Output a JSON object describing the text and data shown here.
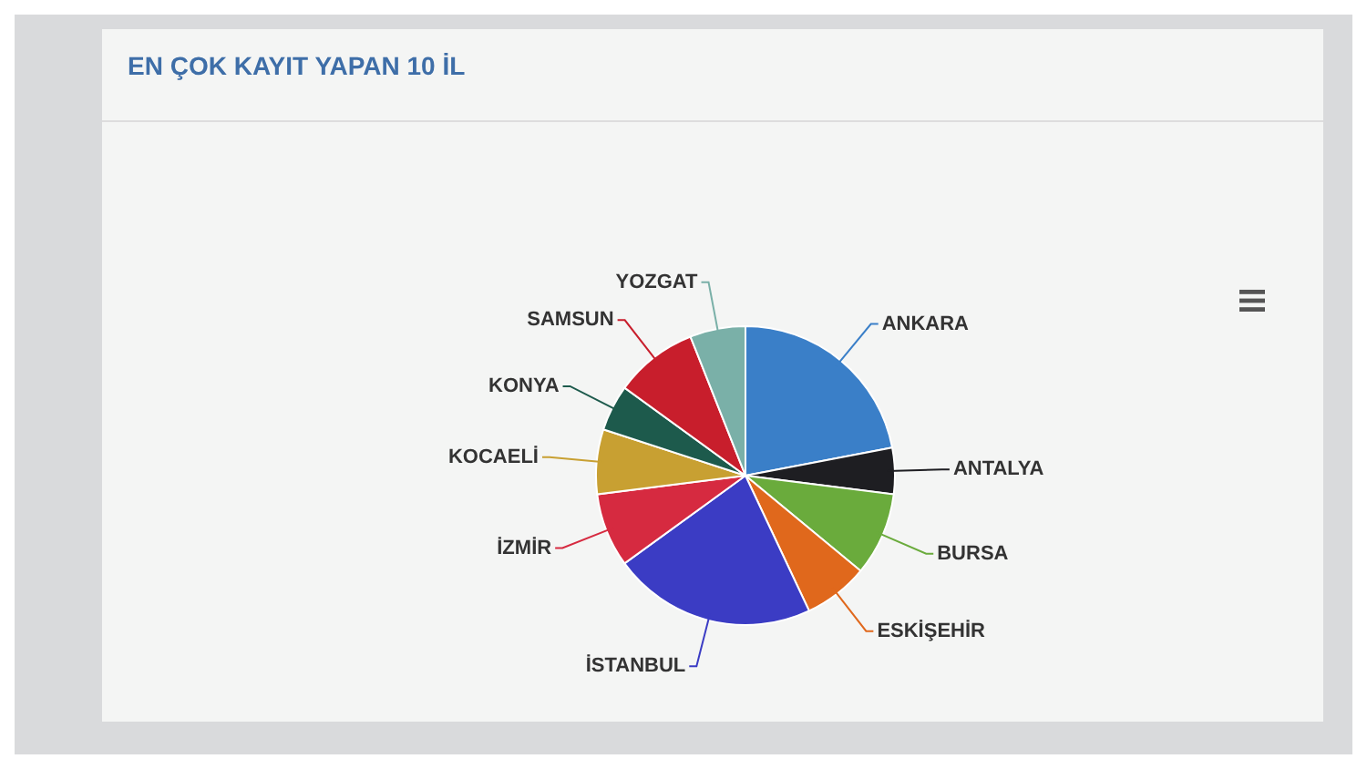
{
  "chart_data": {
    "type": "pie",
    "title": "EN ÇOK KAYIT YAPAN 10 İL",
    "categories": [
      "ANKARA",
      "ANTALYA",
      "BURSA",
      "ESKİŞEHİR",
      "İSTANBUL",
      "İZMİR",
      "KOCAELİ",
      "KONYA",
      "SAMSUN",
      "YOZGAT"
    ],
    "values": [
      22,
      5,
      9,
      7,
      22,
      8,
      7,
      5,
      9,
      6
    ],
    "colors": [
      "#3a7fc8",
      "#1e1e22",
      "#6aab3c",
      "#e0681c",
      "#3b3cc4",
      "#d62a40",
      "#c8a032",
      "#1d5a4c",
      "#c81e2c",
      "#7ab0a8"
    ]
  }
}
